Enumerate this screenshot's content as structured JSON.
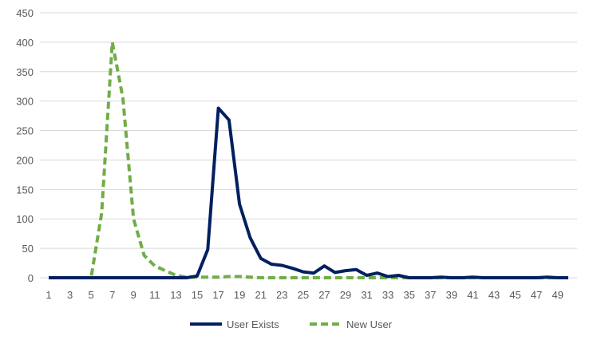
{
  "chart_data": {
    "type": "line",
    "title": "",
    "xlabel": "",
    "ylabel": "",
    "x": [
      1,
      2,
      3,
      4,
      5,
      6,
      7,
      8,
      9,
      10,
      11,
      12,
      13,
      14,
      15,
      16,
      17,
      18,
      19,
      20,
      21,
      22,
      23,
      24,
      25,
      26,
      27,
      28,
      29,
      30,
      31,
      32,
      33,
      34,
      35,
      36,
      37,
      38,
      39,
      40,
      41,
      42,
      43,
      44,
      45,
      46,
      47,
      48,
      49,
      50
    ],
    "x_tick_labels": [
      "1",
      "3",
      "5",
      "7",
      "9",
      "11",
      "13",
      "15",
      "17",
      "19",
      "21",
      "23",
      "25",
      "27",
      "29",
      "31",
      "33",
      "35",
      "37",
      "39",
      "41",
      "43",
      "45",
      "47",
      "49"
    ],
    "ylim": [
      0,
      450
    ],
    "y_ticks": [
      0,
      50,
      100,
      150,
      200,
      250,
      300,
      350,
      400,
      450
    ],
    "grid": true,
    "legend_position": "bottom-center",
    "series": [
      {
        "name": "User Exists",
        "color": "#002060",
        "style": "solid",
        "values": [
          0,
          0,
          0,
          0,
          0,
          0,
          0,
          0,
          0,
          0,
          0,
          0,
          0,
          0,
          3,
          48,
          288,
          268,
          125,
          68,
          33,
          23,
          21,
          16,
          10,
          8,
          20,
          9,
          12,
          14,
          4,
          8,
          2,
          4,
          0,
          0,
          0,
          1,
          0,
          0,
          1,
          0,
          0,
          0,
          0,
          0,
          0,
          1,
          0,
          0
        ]
      },
      {
        "name": "New User",
        "color": "#70AD47",
        "style": "dashed",
        "values": [
          0,
          0,
          0,
          0,
          0,
          110,
          400,
          305,
          100,
          38,
          20,
          12,
          4,
          1,
          1,
          1,
          1,
          2,
          2,
          1,
          0,
          0,
          0,
          0,
          0,
          0,
          0,
          0,
          0,
          0,
          0,
          0,
          0,
          0,
          0,
          0,
          0,
          0,
          0,
          0,
          0,
          0,
          0,
          0,
          0,
          0,
          0,
          0,
          0,
          0
        ]
      }
    ]
  }
}
